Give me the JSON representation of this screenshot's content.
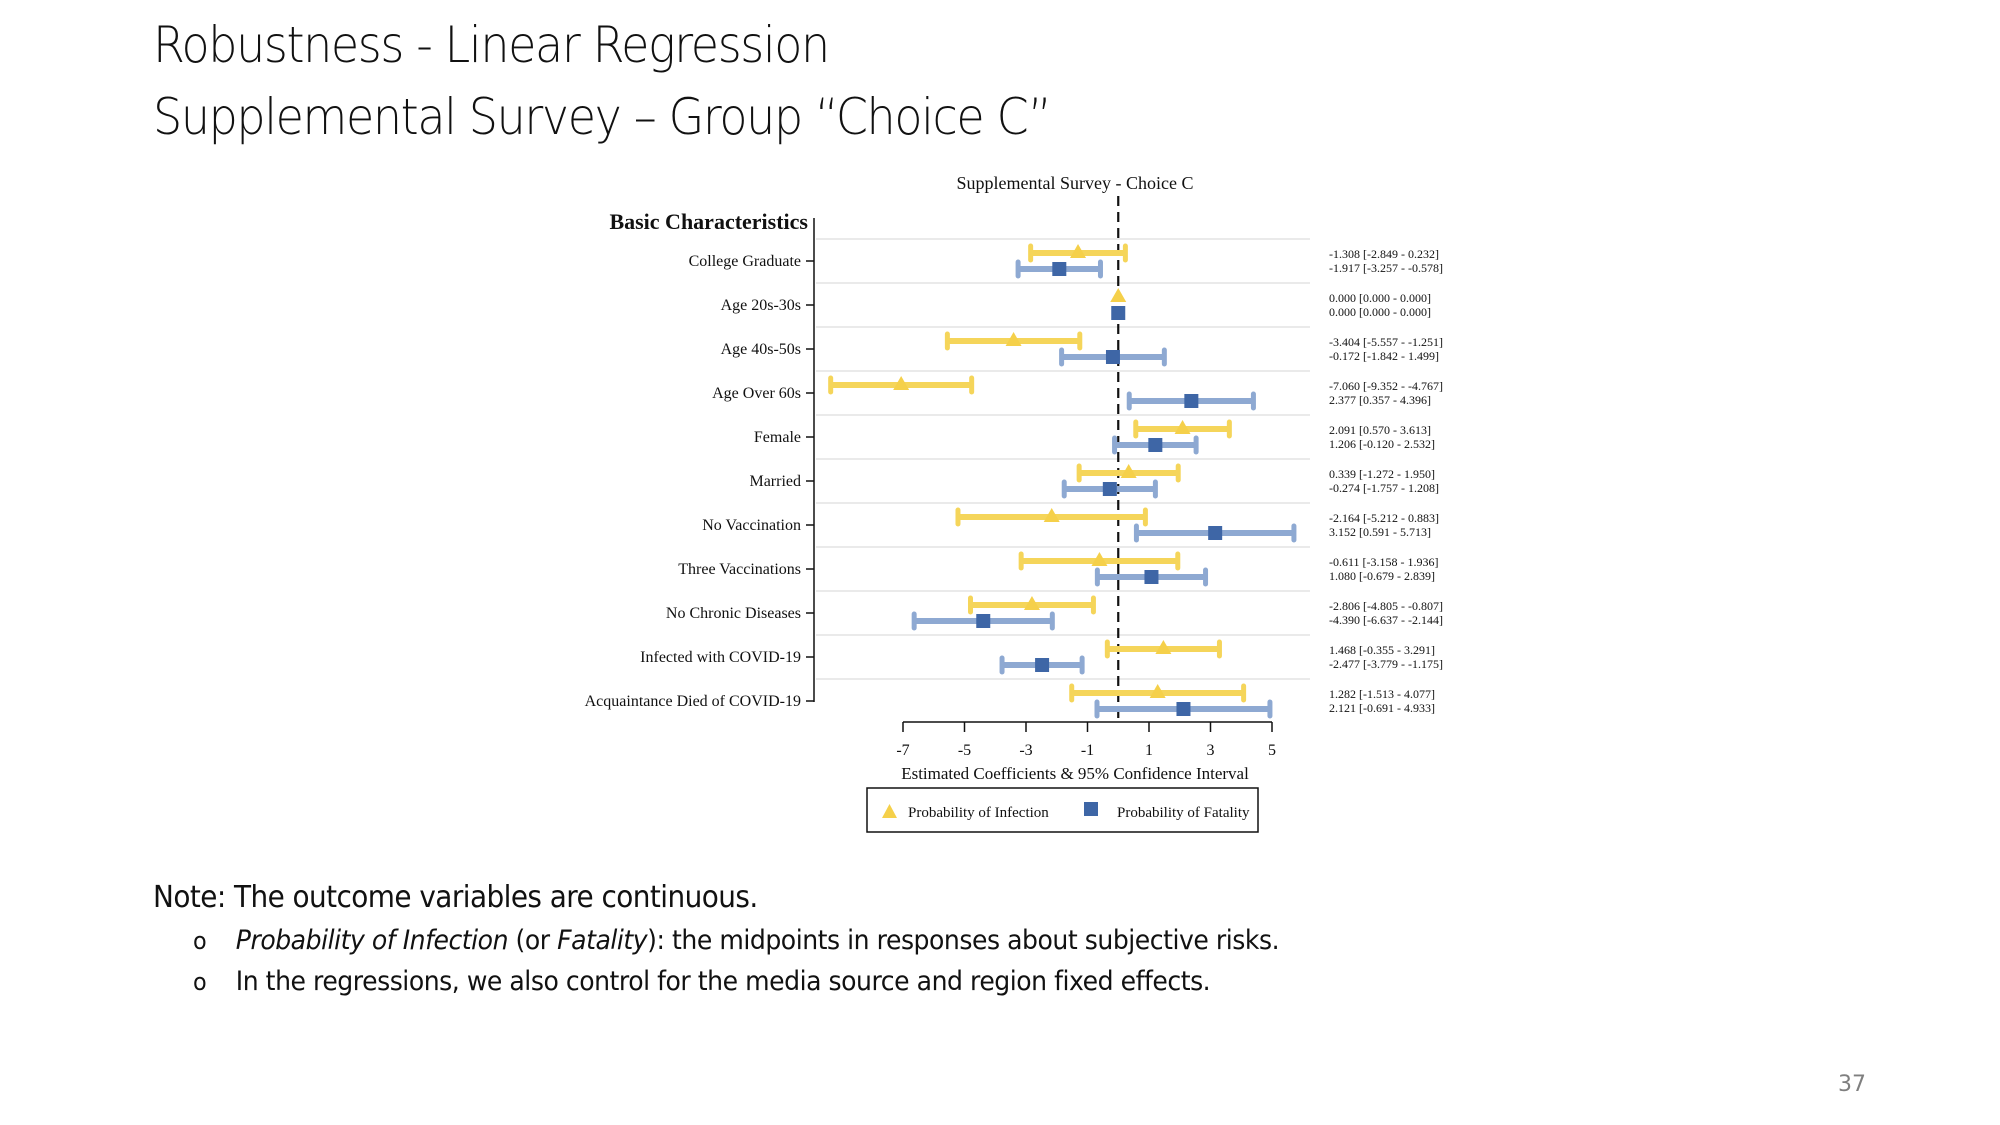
{
  "slide": {
    "title_line1": "Robustness - Linear Regression",
    "title_line2": "Supplemental Survey – Group “Choice C”",
    "note_heading": "Note: The outcome variables are continuous.",
    "bullets": [
      {
        "marker": "o",
        "italic1": "Probability of Infection",
        "plain1": " (or ",
        "italic2": "Fatality",
        "plain2": "): the midpoints in responses about subjective risks."
      },
      {
        "marker": "o",
        "text": "In the regressions, we also control for the media source and region fixed effects."
      }
    ],
    "page_number": "37"
  },
  "colors": {
    "infection": "#F5D04A",
    "infection_ci": "#F5D55A",
    "fatality": "#3E66A6",
    "fatality_ci": "#8EA9D2",
    "grid": "#E4E4E4"
  },
  "chart_data": {
    "type": "coefficient-plot",
    "title": "Supplemental Survey - Choice C",
    "group_heading": "Basic Characteristics",
    "xlabel": "Estimated Coefficients & 95% Confidence Interval",
    "xlim": [
      -7,
      5
    ],
    "xticks": [
      -7,
      -5,
      -3,
      -1,
      1,
      3,
      5
    ],
    "reference_line": 0,
    "grid": true,
    "legend_position": "bottom",
    "categories": [
      "College Graduate",
      "Age 20s-30s",
      "Age 40s-50s",
      "Age Over 60s",
      "Female",
      "Married",
      "No Vaccination",
      "Three Vaccinations",
      "No Chronic Diseases",
      "Infected with COVID-19",
      "Acquaintance Died of COVID-19"
    ],
    "series": [
      {
        "name": "Probability of Infection",
        "marker": "triangle",
        "estimates": [
          -1.308,
          0.0,
          -3.404,
          -7.06,
          2.091,
          0.339,
          -2.164,
          -0.611,
          -2.806,
          1.468,
          1.282
        ],
        "ci_low": [
          -2.849,
          0.0,
          -5.557,
          -9.352,
          0.57,
          -1.272,
          -5.212,
          -3.158,
          -4.805,
          -0.355,
          -1.513
        ],
        "ci_high": [
          0.232,
          0.0,
          -1.251,
          -4.767,
          3.613,
          1.95,
          0.883,
          1.936,
          -0.807,
          3.291,
          4.077
        ],
        "labels": [
          "-1.308  [-2.849 - 0.232]",
          "0.000  [0.000 - 0.000]",
          "-3.404  [-5.557 - -1.251]",
          "-7.060  [-9.352 - -4.767]",
          "2.091  [0.570 - 3.613]",
          "0.339  [-1.272 - 1.950]",
          "-2.164  [-5.212 - 0.883]",
          "-0.611  [-3.158 - 1.936]",
          "-2.806  [-4.805 - -0.807]",
          "1.468  [-0.355 - 3.291]",
          "1.282  [-1.513 - 4.077]"
        ]
      },
      {
        "name": "Probability of Fatality",
        "marker": "square",
        "estimates": [
          -1.917,
          0.0,
          -0.172,
          2.377,
          1.206,
          -0.274,
          3.152,
          1.08,
          -4.39,
          -2.477,
          2.121
        ],
        "ci_low": [
          -3.257,
          0.0,
          -1.842,
          0.357,
          -0.12,
          -1.757,
          0.591,
          -0.679,
          -6.637,
          -3.779,
          -0.691
        ],
        "ci_high": [
          -0.578,
          0.0,
          1.499,
          4.396,
          2.532,
          1.208,
          5.713,
          2.839,
          -2.144,
          -1.175,
          4.933
        ],
        "labels": [
          "-1.917  [-3.257 - -0.578]",
          "0.000  [0.000 - 0.000]",
          "-0.172  [-1.842 - 1.499]",
          "2.377  [0.357 - 4.396]",
          "1.206  [-0.120 - 2.532]",
          "-0.274  [-1.757 - 1.208]",
          "3.152  [0.591 - 5.713]",
          "1.080  [-0.679 - 2.839]",
          "-4.390  [-6.637 - -2.144]",
          "-2.477  [-3.779 - -1.175]",
          "2.121  [-0.691 - 4.933]"
        ]
      }
    ]
  }
}
